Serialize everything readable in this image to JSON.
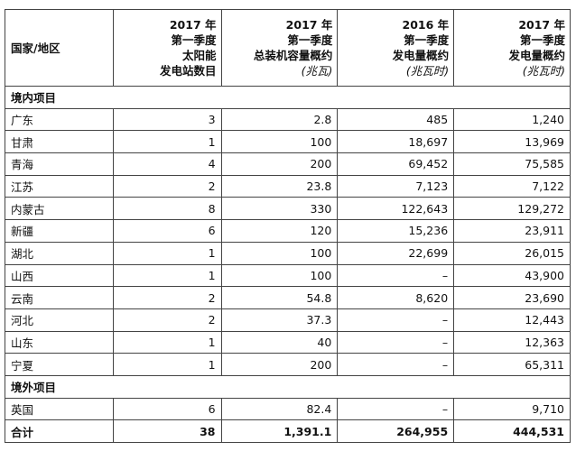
{
  "headers": [
    {
      "lines": [
        "国家/地区"
      ]
    },
    {
      "lines": [
        "2017 年",
        "第一季度",
        "太阳能",
        "发电站数目"
      ],
      "unit": ""
    },
    {
      "lines": [
        "2017 年",
        "第一季度",
        "总装机容量概约"
      ],
      "unit": "(兆瓦)"
    },
    {
      "lines": [
        "2016 年",
        "第一季度",
        "发电量概约"
      ],
      "unit": "(兆瓦时)"
    },
    {
      "lines": [
        "2017 年",
        "第一季度",
        "发电量概约"
      ],
      "unit": "(兆瓦时)"
    }
  ],
  "sections": [
    {
      "title": "境内项目",
      "rows": [
        [
          "广东",
          "3",
          "2.8",
          "485",
          "1,240"
        ],
        [
          "甘肃",
          "1",
          "100",
          "18,697",
          "13,969"
        ],
        [
          "青海",
          "4",
          "200",
          "69,452",
          "75,585"
        ],
        [
          "江苏",
          "2",
          "23.8",
          "7,123",
          "7,122"
        ],
        [
          "内蒙古",
          "8",
          "330",
          "122,643",
          "129,272"
        ],
        [
          "新疆",
          "6",
          "120",
          "15,236",
          "23,911"
        ],
        [
          "湖北",
          "1",
          "100",
          "22,699",
          "26,015"
        ],
        [
          "山西",
          "1",
          "100",
          "–",
          "43,900"
        ],
        [
          "云南",
          "2",
          "54.8",
          "8,620",
          "23,690"
        ],
        [
          "河北",
          "2",
          "37.3",
          "–",
          "12,443"
        ],
        [
          "山东",
          "1",
          "40",
          "–",
          "12,363"
        ],
        [
          "宁夏",
          "1",
          "200",
          "–",
          "65,311"
        ]
      ]
    },
    {
      "title": "境外项目",
      "rows": [
        [
          "英国",
          "6",
          "82.4",
          "–",
          "9,710"
        ]
      ]
    }
  ],
  "total": [
    "合计",
    "38",
    "1,391.1",
    "264,955",
    "444,531"
  ]
}
